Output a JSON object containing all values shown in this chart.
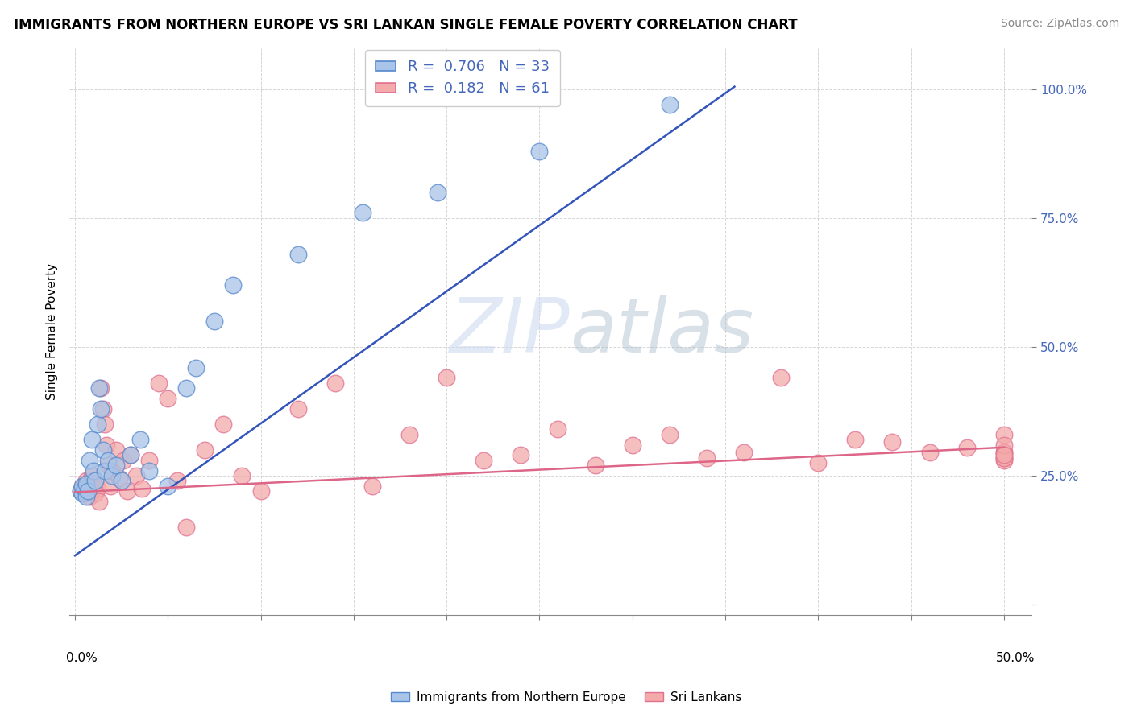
{
  "title": "IMMIGRANTS FROM NORTHERN EUROPE VS SRI LANKAN SINGLE FEMALE POVERTY CORRELATION CHART",
  "source": "Source: ZipAtlas.com",
  "ylabel": "Single Female Poverty",
  "legend_series1": "Immigrants from Northern Europe",
  "legend_series2": "Sri Lankans",
  "blue_fill": "#A8C4E8",
  "blue_edge": "#5588CC",
  "pink_fill": "#F4AAAA",
  "pink_edge": "#E07090",
  "blue_line_color": "#3355BB",
  "pink_line_color": "#DD6688",
  "ytick_color": "#4466BB",
  "watermark_color": "#CCDDEE",
  "blue_x": [
    0.003,
    0.004,
    0.004,
    0.005,
    0.006,
    0.006,
    0.007,
    0.008,
    0.009,
    0.01,
    0.011,
    0.012,
    0.013,
    0.014,
    0.015,
    0.016,
    0.018,
    0.02,
    0.022,
    0.025,
    0.03,
    0.035,
    0.04,
    0.05,
    0.06,
    0.065,
    0.075,
    0.085,
    0.12,
    0.155,
    0.195,
    0.25,
    0.32
  ],
  "blue_y": [
    0.22,
    0.215,
    0.23,
    0.225,
    0.21,
    0.235,
    0.22,
    0.28,
    0.32,
    0.26,
    0.24,
    0.35,
    0.42,
    0.38,
    0.3,
    0.26,
    0.28,
    0.25,
    0.27,
    0.24,
    0.29,
    0.32,
    0.26,
    0.23,
    0.42,
    0.46,
    0.55,
    0.62,
    0.68,
    0.76,
    0.8,
    0.88,
    0.97
  ],
  "pink_x": [
    0.003,
    0.004,
    0.005,
    0.006,
    0.007,
    0.008,
    0.009,
    0.01,
    0.011,
    0.012,
    0.013,
    0.014,
    0.015,
    0.016,
    0.017,
    0.018,
    0.019,
    0.02,
    0.022,
    0.024,
    0.026,
    0.028,
    0.03,
    0.033,
    0.036,
    0.04,
    0.045,
    0.05,
    0.055,
    0.06,
    0.07,
    0.08,
    0.09,
    0.1,
    0.12,
    0.14,
    0.16,
    0.18,
    0.2,
    0.22,
    0.24,
    0.26,
    0.28,
    0.3,
    0.32,
    0.34,
    0.36,
    0.38,
    0.4,
    0.42,
    0.44,
    0.46,
    0.48,
    0.5,
    0.5,
    0.5,
    0.5,
    0.5,
    0.5,
    0.5,
    0.5
  ],
  "pink_y": [
    0.22,
    0.23,
    0.215,
    0.24,
    0.22,
    0.21,
    0.25,
    0.235,
    0.215,
    0.225,
    0.2,
    0.42,
    0.38,
    0.35,
    0.31,
    0.27,
    0.23,
    0.26,
    0.3,
    0.245,
    0.28,
    0.22,
    0.29,
    0.25,
    0.225,
    0.28,
    0.43,
    0.4,
    0.24,
    0.15,
    0.3,
    0.35,
    0.25,
    0.22,
    0.38,
    0.43,
    0.23,
    0.33,
    0.44,
    0.28,
    0.29,
    0.34,
    0.27,
    0.31,
    0.33,
    0.285,
    0.295,
    0.44,
    0.275,
    0.32,
    0.315,
    0.295,
    0.305,
    0.285,
    0.295,
    0.28,
    0.33,
    0.295,
    0.285,
    0.31,
    0.29
  ],
  "blue_line_x0": 0.0,
  "blue_line_y0": 0.095,
  "blue_line_x1": 0.355,
  "blue_line_y1": 1.005,
  "pink_line_x0": 0.0,
  "pink_line_y0": 0.218,
  "pink_line_x1": 0.5,
  "pink_line_y1": 0.305,
  "xlim_min": -0.003,
  "xlim_max": 0.515,
  "ylim_min": -0.02,
  "ylim_max": 1.08
}
